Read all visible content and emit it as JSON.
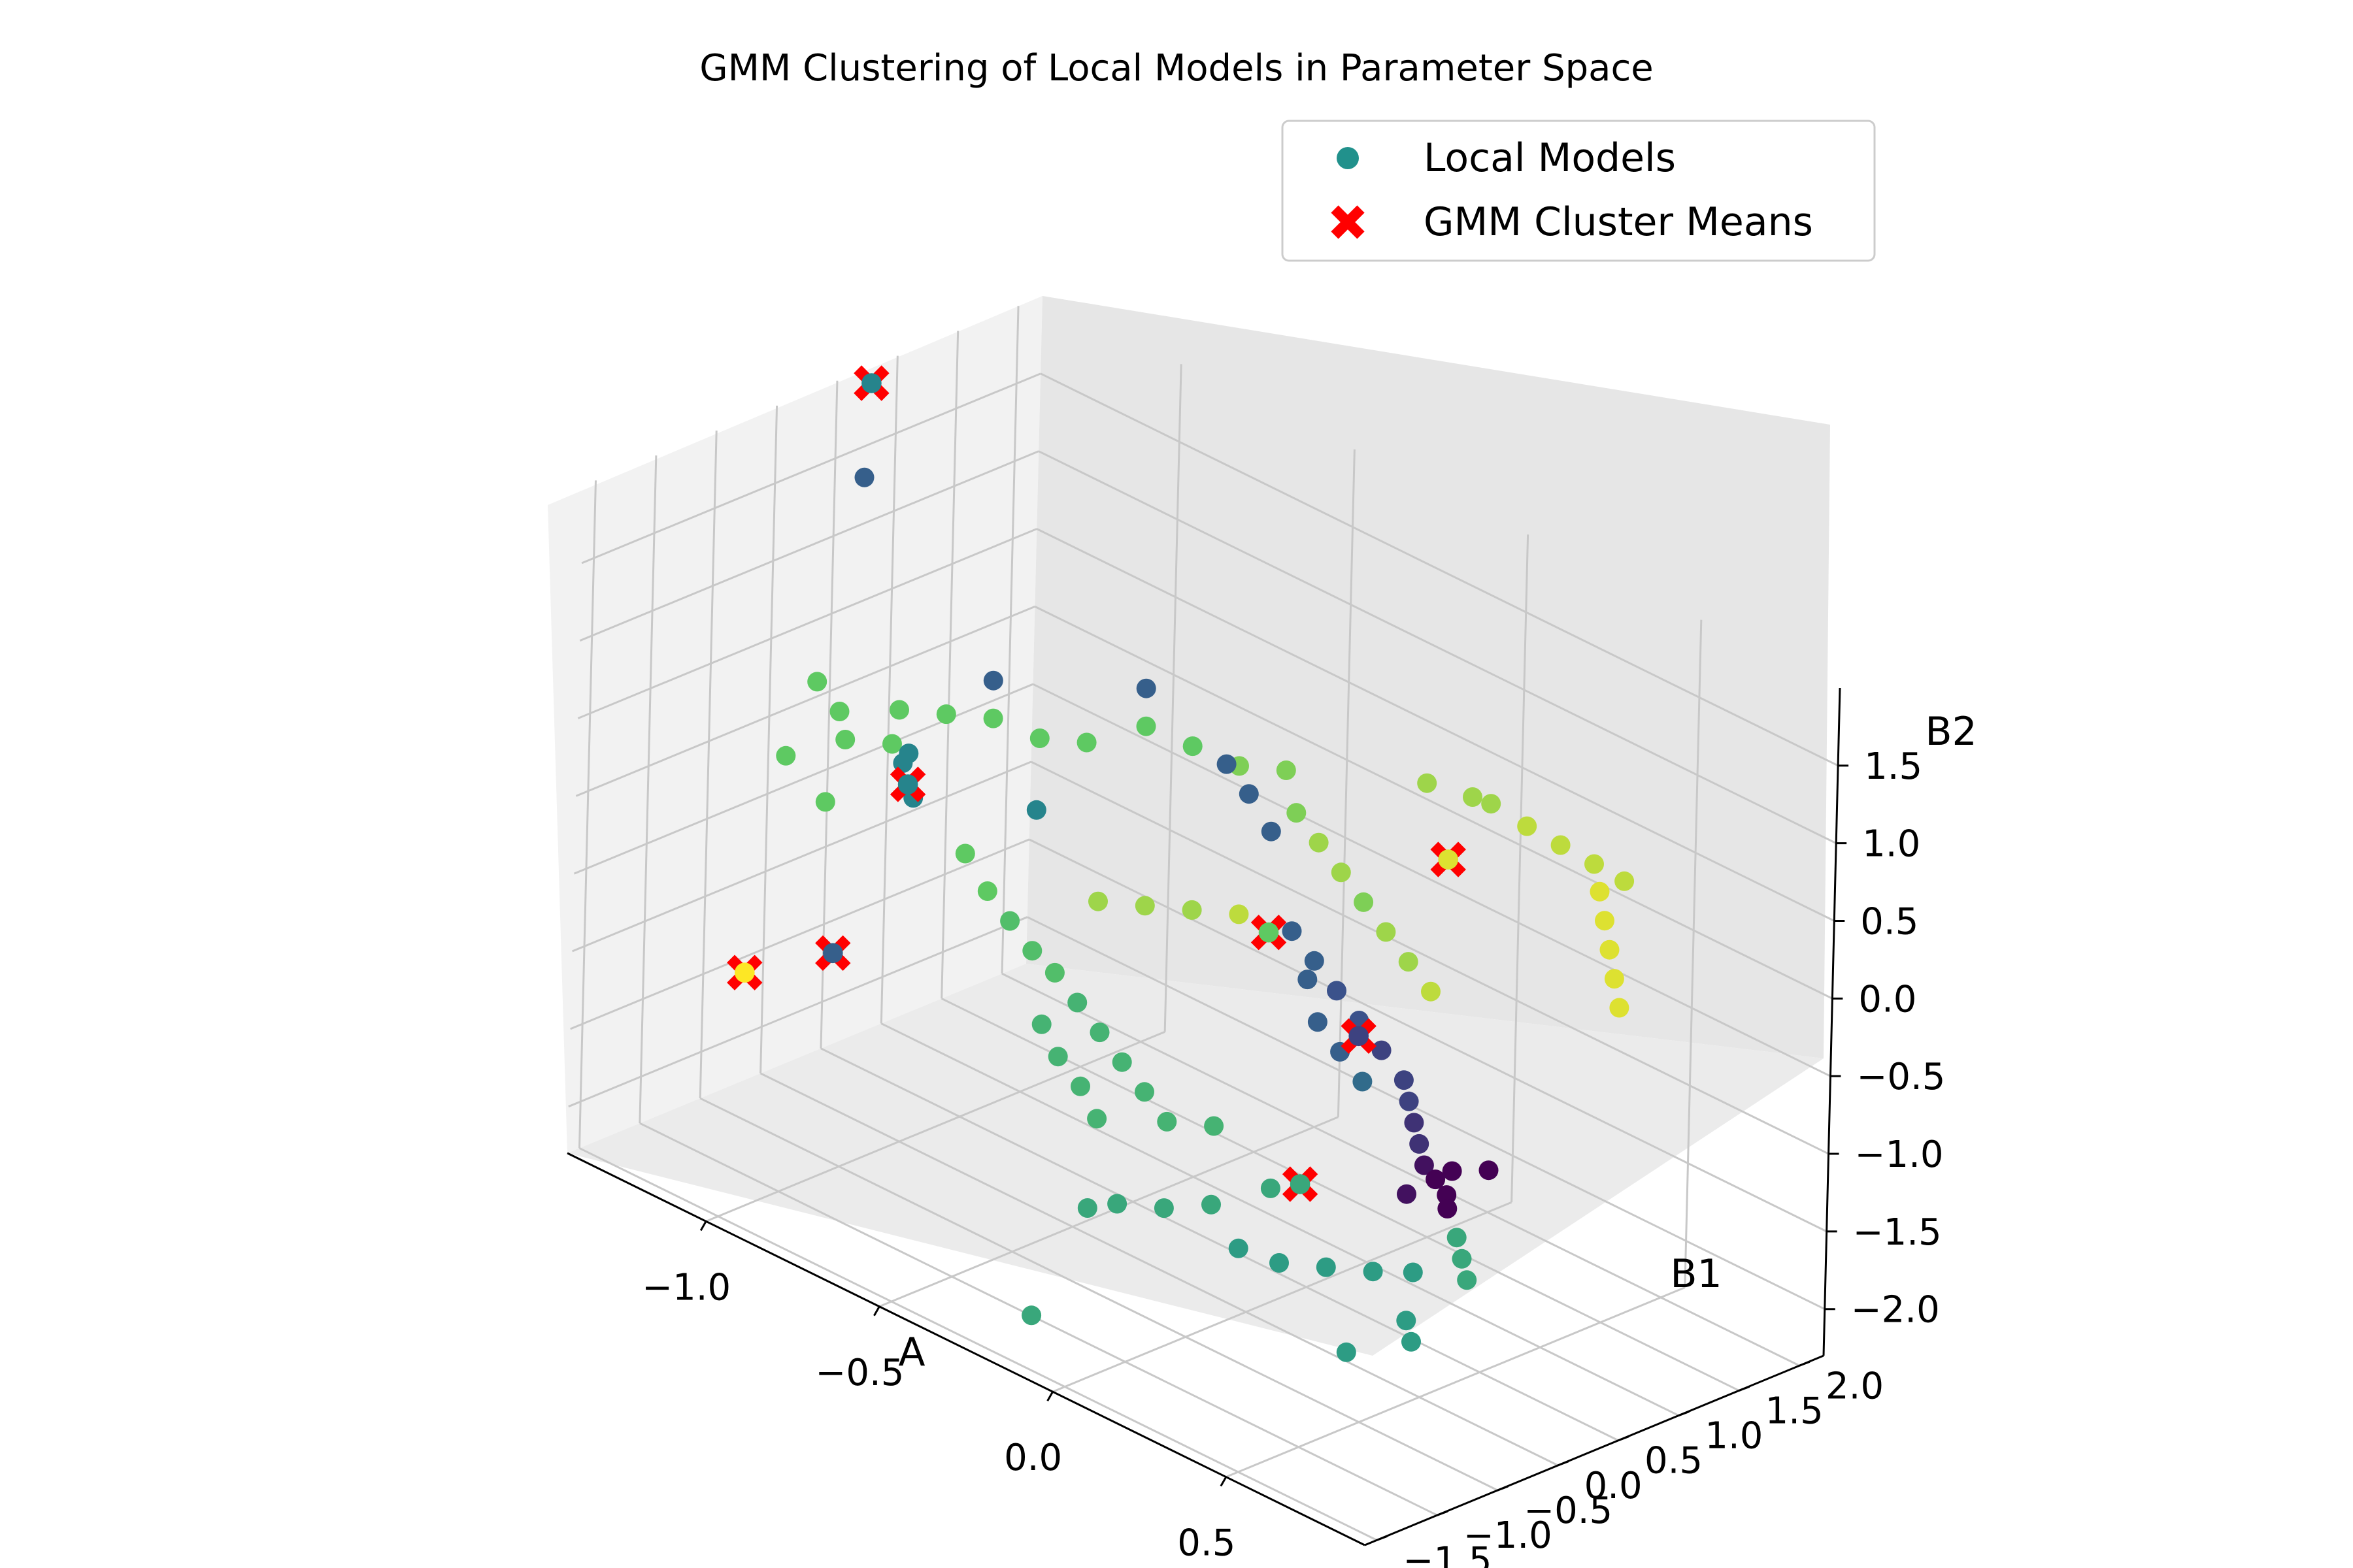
{
  "chart_data": {
    "type": "scatter",
    "projection": "3d",
    "title": "GMM Clustering of Local Models in Parameter Space",
    "xlabel": "A",
    "ylabel": "B1",
    "zlabel": "B2",
    "xlim": [
      -1.4,
      0.9
    ],
    "ylim": [
      -1.6,
      2.2
    ],
    "zlim": [
      -2.3,
      2.0
    ],
    "x_ticks": [
      -1.0,
      -0.5,
      0.0,
      0.5
    ],
    "y_ticks": [
      -1.5,
      -1.0,
      -0.5,
      0.0,
      0.5,
      1.0,
      1.5,
      2.0
    ],
    "z_ticks": [
      -2.0,
      -1.5,
      -1.0,
      -0.5,
      0.0,
      0.5,
      1.0,
      1.5
    ],
    "x_tick_labels": [
      "−1.0",
      "−0.5",
      "0.0",
      "0.5"
    ],
    "y_tick_labels": [
      "−1.5",
      "−1.0",
      "−0.5",
      "0.0",
      "0.5",
      "1.0",
      "1.5",
      "2.0"
    ],
    "z_tick_labels": [
      "−2.0",
      "−1.5",
      "−1.0",
      "−0.5",
      "0.0",
      "0.5",
      "1.0",
      "1.5"
    ],
    "grid": true,
    "legend_position": "top-right",
    "colormap": "viridis",
    "series": [
      {
        "name": "Local Models",
        "marker": "circle",
        "legend_color": "#21918c",
        "points": [
          {
            "x": 0.05,
            "y": 1.8,
            "z": 0.45,
            "c": 0.85
          },
          {
            "x": -0.02,
            "y": 1.85,
            "z": 0.4,
            "c": 0.85
          },
          {
            "x": -0.1,
            "y": 1.7,
            "z": 0.45,
            "c": 0.85
          },
          {
            "x": 0.12,
            "y": 1.9,
            "z": 0.35,
            "c": 0.9
          },
          {
            "x": 0.2,
            "y": 1.95,
            "z": 0.3,
            "c": 0.9
          },
          {
            "x": 0.28,
            "y": 2.0,
            "z": 0.25,
            "c": 0.9
          },
          {
            "x": 0.35,
            "y": 2.05,
            "z": 0.2,
            "c": 0.9
          },
          {
            "x": -0.4,
            "y": 1.4,
            "z": 0.3,
            "c": 0.8
          },
          {
            "x": -0.5,
            "y": 1.3,
            "z": 0.25,
            "c": 0.8
          },
          {
            "x": -0.6,
            "y": 1.2,
            "z": 0.3,
            "c": 0.75
          },
          {
            "x": -0.7,
            "y": 1.1,
            "z": 0.35,
            "c": 0.75
          },
          {
            "x": -0.3,
            "y": 1.2,
            "z": 0.2,
            "c": 0.8
          },
          {
            "x": -0.2,
            "y": 1.1,
            "z": 0.15,
            "c": 0.85
          },
          {
            "x": -0.1,
            "y": 1.0,
            "z": 0.1,
            "c": 0.85
          },
          {
            "x": 0.0,
            "y": 0.9,
            "z": 0.05,
            "c": 0.8
          },
          {
            "x": 0.1,
            "y": 0.8,
            "z": 0.0,
            "c": 0.85
          },
          {
            "x": 0.2,
            "y": 0.7,
            "z": -0.05,
            "c": 0.85
          },
          {
            "x": 0.3,
            "y": 0.6,
            "z": -0.1,
            "c": 0.9
          },
          {
            "x": -0.8,
            "y": 0.9,
            "z": 0.2,
            "c": 0.75
          },
          {
            "x": -0.9,
            "y": 0.8,
            "z": 0.15,
            "c": 0.75
          },
          {
            "x": -1.0,
            "y": 0.7,
            "z": 0.2,
            "c": 0.75
          },
          {
            "x": -1.1,
            "y": 0.6,
            "z": 0.15,
            "c": 0.75
          },
          {
            "x": -1.2,
            "y": 0.5,
            "z": 0.1,
            "c": 0.75
          },
          {
            "x": -1.15,
            "y": 0.3,
            "z": 0.0,
            "c": 0.75
          },
          {
            "x": -1.25,
            "y": 0.2,
            "z": -0.05,
            "c": 0.75
          },
          {
            "x": -1.3,
            "y": 0.1,
            "z": 0.3,
            "c": 0.75
          },
          {
            "x": -1.2,
            "y": 0.0,
            "z": 0.25,
            "c": 0.75
          },
          {
            "x": -1.35,
            "y": 0.0,
            "z": -0.2,
            "c": 0.75
          },
          {
            "x": -1.2,
            "y": -0.1,
            "z": -0.3,
            "c": 0.75
          },
          {
            "x": -0.9,
            "y": 0.2,
            "z": -0.4,
            "c": 0.75
          },
          {
            "x": -0.8,
            "y": 0.1,
            "z": -0.5,
            "c": 0.75
          },
          {
            "x": -0.7,
            "y": 0.0,
            "z": -0.55,
            "c": 0.7
          },
          {
            "x": -0.6,
            "y": -0.1,
            "z": -0.6,
            "c": 0.7
          },
          {
            "x": -0.5,
            "y": -0.2,
            "z": -0.6,
            "c": 0.7
          },
          {
            "x": -0.4,
            "y": -0.3,
            "z": -0.65,
            "c": 0.65
          },
          {
            "x": -0.3,
            "y": -0.4,
            "z": -0.7,
            "c": 0.65
          },
          {
            "x": -0.2,
            "y": -0.5,
            "z": -0.75,
            "c": 0.65
          },
          {
            "x": -0.1,
            "y": -0.6,
            "z": -0.8,
            "c": 0.65
          },
          {
            "x": 0.0,
            "y": -0.7,
            "z": -0.85,
            "c": 0.65
          },
          {
            "x": 0.1,
            "y": -0.6,
            "z": -0.8,
            "c": 0.65
          },
          {
            "x": -0.5,
            "y": -0.3,
            "z": -0.9,
            "c": 0.65
          },
          {
            "x": -0.4,
            "y": -0.45,
            "z": -0.95,
            "c": 0.65
          },
          {
            "x": -0.3,
            "y": -0.55,
            "z": -1.0,
            "c": 0.65
          },
          {
            "x": -0.2,
            "y": -0.7,
            "z": -1.05,
            "c": 0.65
          },
          {
            "x": 0.4,
            "y": 0.1,
            "z": -0.4,
            "c": 0.2
          },
          {
            "x": 0.45,
            "y": 0.0,
            "z": -0.45,
            "c": 0.2
          },
          {
            "x": 0.5,
            "y": -0.1,
            "z": -0.5,
            "c": 0.15
          },
          {
            "x": 0.55,
            "y": -0.2,
            "z": -0.55,
            "c": 0.15
          },
          {
            "x": 0.3,
            "y": 0.2,
            "z": -0.35,
            "c": 0.2
          },
          {
            "x": 0.2,
            "y": 0.3,
            "z": -0.3,
            "c": 0.25
          },
          {
            "x": 0.1,
            "y": 0.4,
            "z": -0.25,
            "c": 0.25
          },
          {
            "x": 0.0,
            "y": 0.5,
            "z": -0.2,
            "c": 0.3
          },
          {
            "x": -0.1,
            "y": 0.6,
            "z": -0.15,
            "c": 0.3
          },
          {
            "x": 0.6,
            "y": -0.3,
            "z": -0.6,
            "c": 0.05
          },
          {
            "x": 0.65,
            "y": -0.35,
            "z": -0.62,
            "c": 0.0
          },
          {
            "x": 0.7,
            "y": -0.4,
            "z": -0.65,
            "c": 0.0
          },
          {
            "x": 0.68,
            "y": -0.3,
            "z": -0.55,
            "c": 0.0
          },
          {
            "x": 0.72,
            "y": -0.45,
            "z": -0.7,
            "c": 0.0
          },
          {
            "x": 0.62,
            "y": -0.5,
            "z": -0.7,
            "c": 0.05
          },
          {
            "x": 0.75,
            "y": -0.2,
            "z": -0.5,
            "c": 0.0
          },
          {
            "x": 0.8,
            "y": -0.6,
            "z": -0.75,
            "c": 0.6
          },
          {
            "x": 0.85,
            "y": -0.7,
            "z": -0.8,
            "c": 0.6
          },
          {
            "x": 0.9,
            "y": -0.8,
            "z": -0.85,
            "c": 0.6
          },
          {
            "x": 0.78,
            "y": -0.9,
            "z": -0.9,
            "c": 0.55
          },
          {
            "x": 0.7,
            "y": -1.0,
            "z": -0.95,
            "c": 0.55
          },
          {
            "x": 0.6,
            "y": -1.1,
            "z": -1.0,
            "c": 0.55
          },
          {
            "x": 0.5,
            "y": -1.2,
            "z": -1.05,
            "c": 0.55
          },
          {
            "x": 0.4,
            "y": -1.25,
            "z": -1.05,
            "c": 0.55
          },
          {
            "x": 0.9,
            "y": -1.3,
            "z": -0.95,
            "c": 0.55
          },
          {
            "x": 0.95,
            "y": -1.4,
            "z": -1.0,
            "c": 0.55
          },
          {
            "x": 0.2,
            "y": -0.9,
            "z": -1.1,
            "c": 0.6
          },
          {
            "x": 0.1,
            "y": -1.0,
            "z": -1.2,
            "c": 0.6
          },
          {
            "x": 0.0,
            "y": -1.1,
            "z": -1.25,
            "c": 0.6
          },
          {
            "x": -0.05,
            "y": -1.2,
            "z": -1.3,
            "c": 0.6
          },
          {
            "x": -0.1,
            "y": -1.5,
            "z": -1.95,
            "c": 0.6
          },
          {
            "x": 0.3,
            "y": -0.7,
            "z": -0.95,
            "c": 0.6
          },
          {
            "x": 0.8,
            "y": -1.5,
            "z": -1.2,
            "c": 0.55
          },
          {
            "x": -0.6,
            "y": 0.8,
            "z": 0.8,
            "c": 0.3
          },
          {
            "x": -0.9,
            "y": 0.4,
            "z": 0.65,
            "c": 0.3
          },
          {
            "x": -1.0,
            "y": 0.0,
            "z": 0.2,
            "c": 0.45
          },
          {
            "x": -0.95,
            "y": -0.1,
            "z": 0.0,
            "c": 0.45
          },
          {
            "x": -1.05,
            "y": 0.1,
            "z": 0.05,
            "c": 0.45
          },
          {
            "x": -0.7,
            "y": 0.2,
            "z": 0.1,
            "c": 0.45
          },
          {
            "x": -1.35,
            "y": 0.6,
            "z": 1.4,
            "c": 0.3
          },
          {
            "x": -0.4,
            "y": 0.9,
            "z": 0.5,
            "c": 0.3
          },
          {
            "x": -0.3,
            "y": 0.8,
            "z": 0.45,
            "c": 0.3
          },
          {
            "x": -0.2,
            "y": 0.7,
            "z": 0.35,
            "c": 0.3
          },
          {
            "x": 0.15,
            "y": 0.1,
            "z": -0.3,
            "c": 0.3
          },
          {
            "x": 0.05,
            "y": 0.3,
            "z": -0.2,
            "c": 0.3
          },
          {
            "x": 0.25,
            "y": 0.0,
            "z": -0.35,
            "c": 0.3
          },
          {
            "x": 0.35,
            "y": -0.1,
            "z": -0.4,
            "c": 0.35
          },
          {
            "x": -0.15,
            "y": 0.3,
            "z": 0.0,
            "c": 0.9
          },
          {
            "x": -0.25,
            "y": 0.2,
            "z": -0.05,
            "c": 0.85
          },
          {
            "x": -0.35,
            "y": 0.1,
            "z": -0.1,
            "c": 0.85
          },
          {
            "x": -0.45,
            "y": 0.0,
            "z": -0.15,
            "c": 0.85
          },
          {
            "x": 0.45,
            "y": 1.6,
            "z": 0.2,
            "c": 0.95
          },
          {
            "x": 0.5,
            "y": 1.5,
            "z": 0.1,
            "c": 0.95
          },
          {
            "x": 0.55,
            "y": 1.4,
            "z": 0.0,
            "c": 0.95
          },
          {
            "x": 0.6,
            "y": 1.3,
            "z": -0.1,
            "c": 0.95
          },
          {
            "x": 0.4,
            "y": 1.7,
            "z": 0.3,
            "c": 0.95
          }
        ]
      },
      {
        "name": "GMM Cluster Means",
        "marker": "X",
        "legend_color": "#ff0000",
        "points": [
          {
            "x": -1.2,
            "y": 0.2,
            "z": 2.3,
            "c": 0.45
          },
          {
            "x": -1.0,
            "y": 0.0,
            "z": 0.0,
            "c": 0.45
          },
          {
            "x": -1.1,
            "y": -0.3,
            "z": -1.1,
            "c": 0.3
          },
          {
            "x": -1.35,
            "y": -0.3,
            "z": -1.5,
            "c": 1.0
          },
          {
            "x": 0.0,
            "y": 1.6,
            "z": 0.1,
            "c": 0.95
          },
          {
            "x": -0.2,
            "y": 0.7,
            "z": -0.3,
            "c": 0.75
          },
          {
            "x": 0.35,
            "y": -0.6,
            "z": -0.9,
            "c": 0.6
          },
          {
            "x": 0.2,
            "y": 0.3,
            "z": -0.4,
            "c": 0.2
          }
        ]
      }
    ]
  }
}
